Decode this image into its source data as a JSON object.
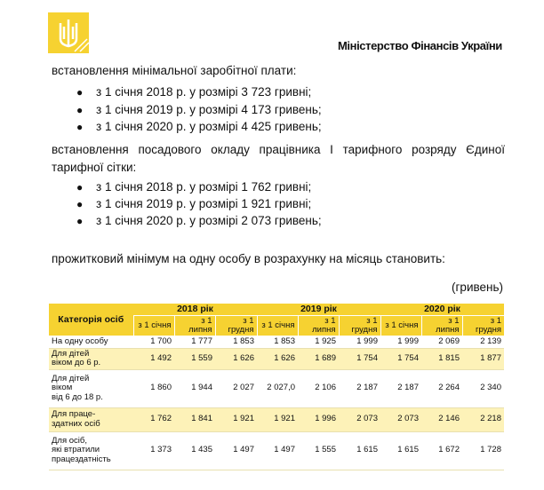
{
  "header": {
    "organization": "Міністерство Фінансів України"
  },
  "sections": [
    {
      "intro": "встановлення мінімальної заробітної плати:",
      "items": [
        "з 1 січня 2018 р. у розмірі 3 723 гривні;",
        "з 1 січня 2019 р. у розмірі 4 173 гривень;",
        "з 1 січня 2020 р. у розмірі 4 425 гривень;"
      ]
    },
    {
      "intro": "встановлення посадового окладу працівника І тарифного розряду Єдиної тарифної сітки:",
      "items": [
        "з 1 січня 2018 р. у розмірі 1 762 гривні;",
        "з 1 січня 2019 р. у розмірі 1 921 гривні;",
        "з 1 січня 2020 р. у розмірі 2 073 гривень;"
      ]
    }
  ],
  "note": "прожитковий мінімум на одну особу в розрахунку на місяць становить:",
  "unit": "(гривень)",
  "table": {
    "category_header": "Категорія осіб",
    "years": [
      "2018 рік",
      "2019 рік",
      "2020 рік"
    ],
    "subheaders": [
      "з 1 січня",
      "з 1 липня",
      "з 1 грудня",
      "з 1 січня",
      "з 1 липня",
      "з 1 грудня",
      "з 1 січня",
      "з 1 липня",
      "з 1 грудня"
    ],
    "rows": [
      [
        "На одну особу",
        "1 700",
        "1 777",
        "1 853",
        "1 853",
        "1 925",
        "1 999",
        "1 999",
        "2 069",
        "2 139"
      ],
      [
        "Для дітей\nвіком до 6 р.",
        "1 492",
        "1 559",
        "1 626",
        "1 626",
        "1 689",
        "1 754",
        "1 754",
        "1 815",
        "1 877"
      ],
      [
        "Для дітей\nвіком\nвід 6 до 18 р.",
        "1 860",
        "1 944",
        "2 027",
        "2 027,0",
        "2 106",
        "2 187",
        "2 187",
        "2 264",
        "2 340"
      ],
      [
        "Для праце-\nздатних осіб",
        "1 762",
        "1 841",
        "1 921",
        "1 921",
        "1 996",
        "2 073",
        "2 073",
        "2 146",
        "2 218"
      ],
      [
        "Для осіб,\nякі втратили\nпрацездатність",
        "1 373",
        "1 435",
        "1 497",
        "1 497",
        "1 555",
        "1 615",
        "1 615",
        "1 672",
        "1 728"
      ]
    ]
  }
}
